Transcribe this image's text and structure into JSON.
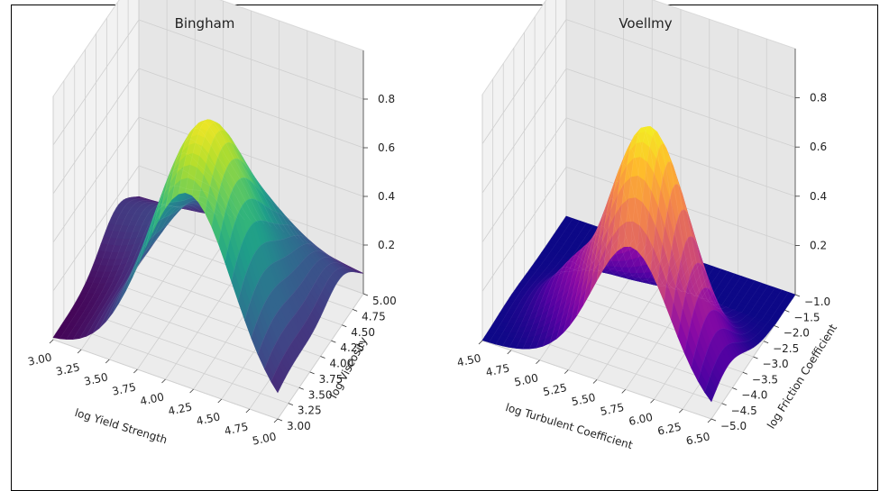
{
  "chart_data": [
    {
      "type": "surface",
      "title": "Bingham",
      "colormap": "viridis",
      "xlabel": "log Yield Strength",
      "ylabel": "log Viscosity",
      "zlabel": "",
      "xlim": [
        3.0,
        5.0
      ],
      "ylim": [
        3.0,
        5.0
      ],
      "zlim": [
        0.0,
        1.0
      ],
      "x_ticks": [
        "3.00",
        "3.25",
        "3.50",
        "3.75",
        "4.00",
        "4.25",
        "4.50",
        "4.75",
        "5.00"
      ],
      "y_ticks": [
        "3.00",
        "3.25",
        "3.50",
        "3.75",
        "4.00",
        "4.25",
        "4.50",
        "4.75",
        "5.00"
      ],
      "z_ticks": [
        "0.2",
        "0.4",
        "0.6",
        "0.8"
      ],
      "peak": {
        "x": 4.2,
        "y": 3.4,
        "z": 0.98
      },
      "grid": true
    },
    {
      "type": "surface",
      "title": "Voellmy",
      "colormap": "plasma",
      "xlabel": "log Turbulent Coefficient",
      "ylabel": "log Friction Coefficient",
      "zlabel": "",
      "xlim": [
        4.5,
        6.5
      ],
      "ylim": [
        -5.0,
        -1.0
      ],
      "zlim": [
        0.0,
        1.0
      ],
      "x_ticks": [
        "4.50",
        "4.75",
        "5.00",
        "5.25",
        "5.50",
        "5.75",
        "6.00",
        "6.25",
        "6.50"
      ],
      "y_ticks": [
        "−5.0",
        "−4.5",
        "−4.0",
        "−3.5",
        "−3.0",
        "−2.5",
        "−2.0",
        "−1.5",
        "−1.0"
      ],
      "z_ticks": [
        "0.2",
        "0.4",
        "0.6",
        "0.8"
      ],
      "peak": {
        "x": 5.8,
        "y": -4.2,
        "z": 0.98
      },
      "grid": true
    }
  ]
}
